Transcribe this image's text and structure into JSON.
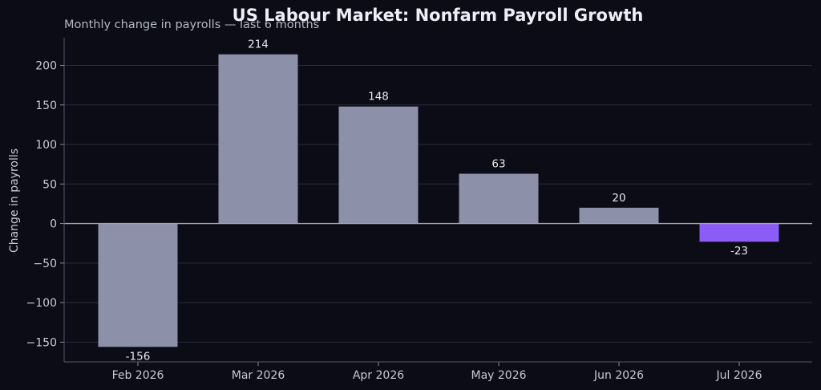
{
  "chart_data": {
    "type": "bar",
    "title": "US Labour Market: Nonfarm Payroll Growth",
    "subtitle": "Monthly change in payrolls — last 6 months",
    "xlabel": "",
    "ylabel": "Change in payrolls",
    "categories": [
      "Feb 2026",
      "Mar 2026",
      "Apr 2026",
      "May 2026",
      "Jun 2026",
      "Jul 2026"
    ],
    "values": [
      -156,
      214,
      148,
      63,
      20,
      -23
    ],
    "data_labels": [
      "-156",
      "214",
      "148",
      "63",
      "20",
      "-23"
    ],
    "ylim": [
      -175,
      235
    ],
    "yticks": [
      -150,
      -100,
      -50,
      0,
      50,
      100,
      150,
      200
    ],
    "ytick_labels": [
      "−150",
      "−100",
      "−50",
      "0",
      "50",
      "100",
      "150",
      "200"
    ],
    "grid": true,
    "legend": "none",
    "colors": {
      "background": "#0b0c16",
      "bar": "#8c90a8",
      "highlight_bar": "#8b5cf6",
      "grid": "#2a2c3e",
      "text": "#c8c9d6"
    },
    "highlight_category": "Jul 2026"
  }
}
